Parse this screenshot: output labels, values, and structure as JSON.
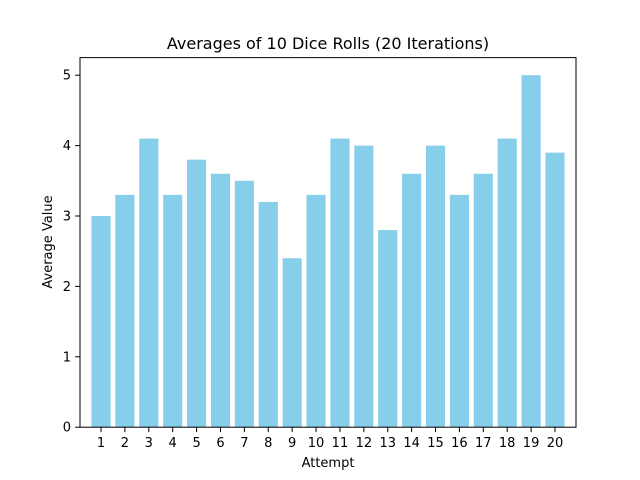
{
  "chart_data": {
    "type": "bar",
    "title": "Averages of 10 Dice Rolls (20 Iterations)",
    "xlabel": "Attempt",
    "ylabel": "Average Value",
    "categories": [
      "1",
      "2",
      "3",
      "4",
      "5",
      "6",
      "7",
      "8",
      "9",
      "10",
      "11",
      "12",
      "13",
      "14",
      "15",
      "16",
      "17",
      "18",
      "19",
      "20"
    ],
    "values": [
      3.0,
      3.3,
      4.1,
      3.3,
      3.8,
      3.6,
      3.5,
      3.2,
      2.4,
      3.3,
      4.1,
      4.0,
      2.8,
      3.6,
      4.0,
      3.3,
      3.6,
      4.1,
      5.0,
      3.9
    ],
    "ylim": [
      0,
      5.25
    ],
    "yticks": [
      "0",
      "1",
      "2",
      "3",
      "4",
      "5"
    ],
    "bar_color": "#87ceeb",
    "grid": false,
    "legend": "none"
  }
}
